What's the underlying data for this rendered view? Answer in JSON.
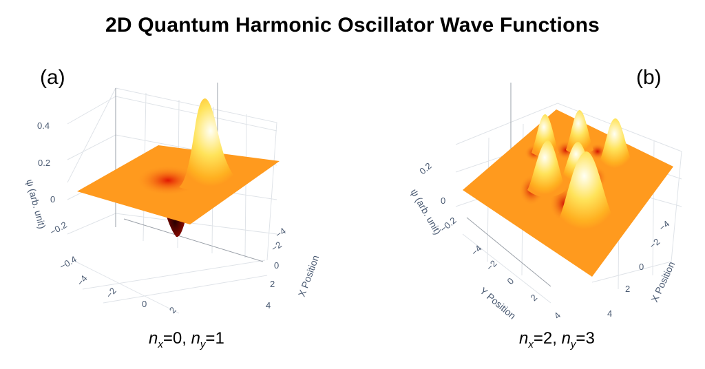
{
  "title": "2D Quantum Harmonic Oscillator Wave Functions",
  "colors": {
    "surface_flat": "#ff9a1e",
    "peak_high": "#ffffe8",
    "trough_low": "#3a0000",
    "grid": "#d9dde3",
    "tick_text": "#4a5a72"
  },
  "chart_data": [
    {
      "type": "surface",
      "panel_label": "(a)",
      "quantum_numbers": {
        "nx": 0,
        "ny": 1
      },
      "caption": {
        "nx_sym": "n",
        "nx_sub": "x",
        "nx_val": "=0, ",
        "ny_sym": "n",
        "ny_sub": "y",
        "ny_val": "=1"
      },
      "zlabel": "ψ (arb. unit)",
      "xlabel": "X Position",
      "ylabel": "",
      "zticks": [
        "0.4",
        "0.2",
        "0",
        "−0.2",
        "−0.4"
      ],
      "xticks": [
        "−4",
        "−2",
        "0",
        "2",
        "4"
      ],
      "yticks": [
        "−4",
        "−2",
        "0",
        "2"
      ],
      "xlim": [
        -5,
        5
      ],
      "ylim": [
        -5,
        5
      ],
      "zlim": [
        -0.5,
        0.5
      ]
    },
    {
      "type": "surface",
      "panel_label": "(b)",
      "quantum_numbers": {
        "nx": 2,
        "ny": 3
      },
      "caption": {
        "nx_sym": "n",
        "nx_sub": "x",
        "nx_val": "=2, ",
        "ny_sym": "n",
        "ny_sub": "y",
        "ny_val": "=3"
      },
      "zlabel": "ψ (arb. unit)",
      "xlabel": "X Position",
      "ylabel": "Y Position",
      "zticks": [
        "0.2",
        "0",
        "−0.2"
      ],
      "xticks": [
        "−4",
        "−2",
        "0",
        "2",
        "4"
      ],
      "yticks": [
        "−4",
        "−2",
        "0",
        "2",
        "4"
      ],
      "xlim": [
        -5,
        5
      ],
      "ylim": [
        -5,
        5
      ],
      "zlim": [
        -0.3,
        0.3
      ]
    }
  ]
}
